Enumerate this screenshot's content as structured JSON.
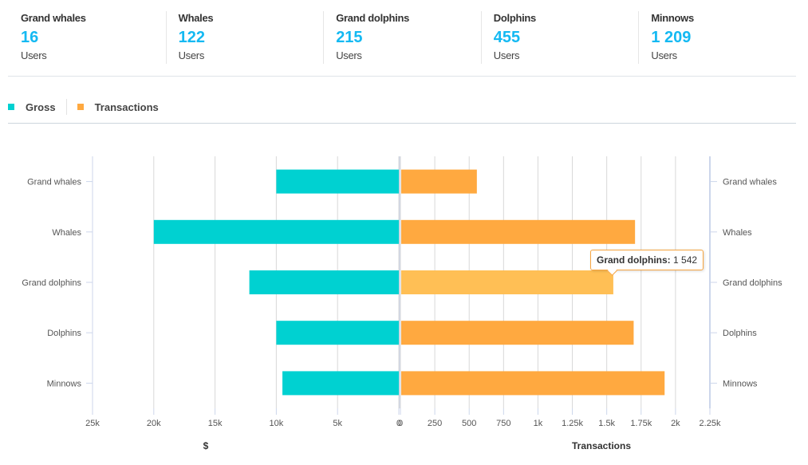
{
  "segments": [
    {
      "name": "Grand whales",
      "value": "16",
      "unit": "Users"
    },
    {
      "name": "Whales",
      "value": "122",
      "unit": "Users"
    },
    {
      "name": "Grand dolphins",
      "value": "215",
      "unit": "Users"
    },
    {
      "name": "Dolphins",
      "value": "455",
      "unit": "Users"
    },
    {
      "name": "Minnows",
      "value": "1 209",
      "unit": "Users"
    }
  ],
  "legend": [
    {
      "label": "Gross",
      "color": "#00d1d1"
    },
    {
      "label": "Transactions",
      "color": "#ffa940"
    }
  ],
  "tooltip": {
    "label": "Grand dolphins:",
    "value": "1 542"
  },
  "chart_data": {
    "type": "bar",
    "orientation": "horizontal-butterfly",
    "categories": [
      "Grand whales",
      "Whales",
      "Grand dolphins",
      "Dolphins",
      "Minnows"
    ],
    "series": [
      {
        "name": "Gross",
        "axis": "left",
        "color": "#00d1d1",
        "values": [
          10000,
          20000,
          12200,
          10000,
          9500
        ]
      },
      {
        "name": "Transactions",
        "axis": "right",
        "color": "#ffa940",
        "values": [
          550,
          1700,
          1542,
          1690,
          1915
        ]
      }
    ],
    "highlight": {
      "series": "Transactions",
      "category": "Grand dolphins",
      "color": "#ffbf55"
    },
    "left_axis": {
      "title": "$",
      "range": [
        0,
        25000
      ],
      "reversed": true,
      "ticks": [
        25000,
        20000,
        15000,
        10000,
        5000,
        0
      ],
      "tick_labels": [
        "25k",
        "20k",
        "15k",
        "10k",
        "5k",
        "0"
      ]
    },
    "right_axis": {
      "title": "Transactions",
      "range": [
        0,
        2250
      ],
      "ticks": [
        0,
        250,
        500,
        750,
        1000,
        1250,
        1500,
        1750,
        2000,
        2250
      ],
      "tick_labels": [
        "0",
        "250",
        "500",
        "750",
        "1k",
        "1.25k",
        "1.5k",
        "1.75k",
        "2k",
        "2.25k"
      ]
    },
    "grid": true,
    "legend_position": "top-left"
  }
}
